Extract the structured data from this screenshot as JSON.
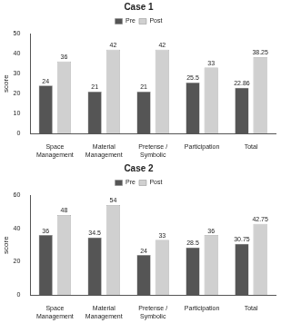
{
  "chart_data": [
    {
      "type": "bar",
      "title": "Case 1",
      "ylabel": "score",
      "categories": [
        "Space Management",
        "Material Management",
        "Pretense / Symbolic",
        "Participation",
        "Total"
      ],
      "series": [
        {
          "name": "Pre",
          "color": "#555555",
          "values": [
            24,
            21,
            21,
            25.5,
            22.86
          ]
        },
        {
          "name": "Post",
          "color": "#d0d0d0",
          "values": [
            36,
            42,
            42,
            33,
            38.25
          ]
        }
      ],
      "ylim": [
        0,
        50
      ],
      "yticks": [
        0,
        10,
        20,
        30,
        40,
        50
      ],
      "grid": false,
      "legend": "top",
      "data_labels": true
    },
    {
      "type": "bar",
      "title": "Case 2",
      "ylabel": "score",
      "categories": [
        "Space Management",
        "Material Management",
        "Pretense / Symbolic",
        "Participation",
        "Total"
      ],
      "series": [
        {
          "name": "Pre",
          "color": "#555555",
          "values": [
            36,
            34.5,
            24,
            28.5,
            30.75
          ]
        },
        {
          "name": "Post",
          "color": "#d0d0d0",
          "values": [
            48,
            54,
            33,
            36,
            42.75
          ]
        }
      ],
      "ylim": [
        0,
        60
      ],
      "yticks": [
        0,
        20,
        40,
        60
      ],
      "grid": false,
      "legend": "top",
      "data_labels": true
    }
  ]
}
